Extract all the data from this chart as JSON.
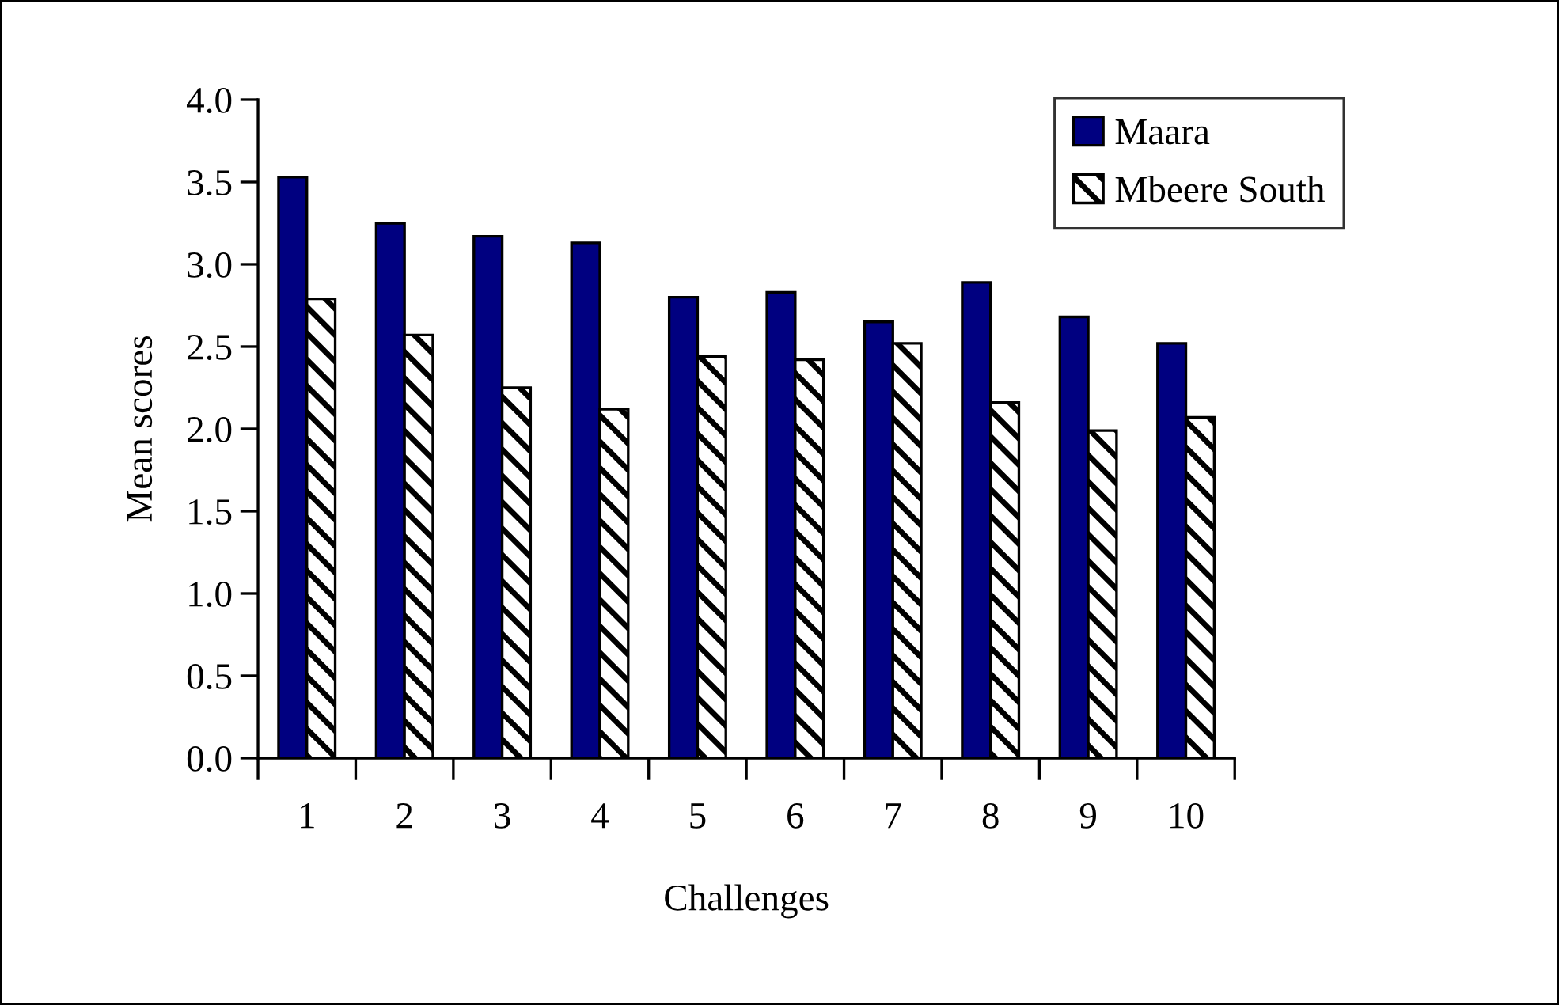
{
  "chart_data": {
    "type": "bar",
    "xlabel": "Challenges",
    "ylabel": "Mean scores",
    "categories": [
      "1",
      "2",
      "3",
      "4",
      "5",
      "6",
      "7",
      "8",
      "9",
      "10"
    ],
    "series": [
      {
        "name": "Maara",
        "color": "#000080",
        "values": [
          3.53,
          3.25,
          3.17,
          3.13,
          2.8,
          2.83,
          2.65,
          2.89,
          2.68,
          2.52
        ]
      },
      {
        "name": "Mbeere South",
        "color": "#000000",
        "values": [
          2.79,
          2.57,
          2.25,
          2.12,
          2.44,
          2.42,
          2.52,
          2.16,
          1.99,
          2.07
        ]
      }
    ],
    "ylim": [
      0,
      4
    ],
    "yticks": [
      {
        "value": 0,
        "label": "0.0"
      },
      {
        "value": 0.5,
        "label": "0.5"
      },
      {
        "value": 1,
        "label": "1.0"
      },
      {
        "value": 1.5,
        "label": "1.5"
      },
      {
        "value": 2,
        "label": "2.0"
      },
      {
        "value": 2.5,
        "label": "2.5"
      },
      {
        "value": 3,
        "label": "3.0"
      },
      {
        "value": 3.5,
        "label": "3.5"
      },
      {
        "value": 4,
        "label": "4.0"
      }
    ],
    "grid": false,
    "legend": "top right"
  }
}
